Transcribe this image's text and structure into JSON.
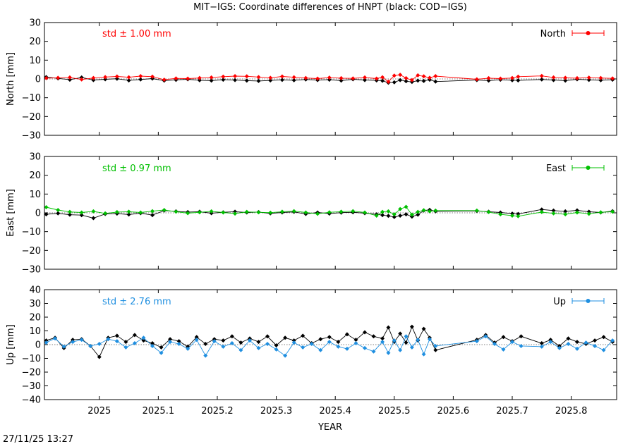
{
  "title": "MIT−IGS: Coordinate differences of HNPT (black: COD−IGS)",
  "xlabel": "YEAR",
  "timestamp": "27/11/25 13:27",
  "chart_data": [
    {
      "type": "scatter",
      "component": "north",
      "ylabel": "North [mm]",
      "std_label": "std ± 1.00 mm",
      "legend_label": "North",
      "legend_position": "top-right",
      "xlim": [
        2024.907,
        2025.877
      ],
      "ylim": [
        -30,
        30
      ],
      "x_ticks": [
        2025,
        2025.1,
        2025.2,
        2025.3,
        2025.4,
        2025.5,
        2025.6,
        2025.7,
        2025.8
      ],
      "x_tick_labels": [
        "2025",
        "2025.1",
        "2025.2",
        "2025.3",
        "2025.4",
        "2025.5",
        "2025.6",
        "2025.7",
        "2025.8"
      ],
      "y_ticks": [
        -30,
        -20,
        -10,
        0,
        10,
        20,
        30
      ],
      "y_tick_labels": [
        "−30",
        "−20",
        "−10",
        "0",
        "10",
        "20",
        "30"
      ],
      "grid": false,
      "colors": {
        "mit": "#ff0000",
        "cod": "#000000"
      },
      "series_mit": {
        "x": [
          2024.91,
          2024.93,
          2024.95,
          2024.97,
          2024.99,
          2025.01,
          2025.03,
          2025.05,
          2025.07,
          2025.09,
          2025.11,
          2025.13,
          2025.15,
          2025.17,
          2025.19,
          2025.21,
          2025.23,
          2025.25,
          2025.27,
          2025.29,
          2025.31,
          2025.33,
          2025.35,
          2025.37,
          2025.39,
          2025.41,
          2025.43,
          2025.45,
          2025.47,
          2025.48,
          2025.49,
          2025.5,
          2025.51,
          2025.52,
          2025.53,
          2025.54,
          2025.55,
          2025.56,
          2025.57,
          2025.64,
          2025.66,
          2025.68,
          2025.7,
          2025.71,
          2025.75,
          2025.77,
          2025.79,
          2025.81,
          2025.83,
          2025.85,
          2025.87
        ],
        "y": [
          0.4,
          0.6,
          0.8,
          -0.3,
          0.5,
          1.0,
          1.3,
          0.9,
          1.5,
          1.2,
          -0.4,
          0.3,
          0.2,
          0.5,
          0.8,
          1.2,
          1.5,
          1.4,
          1.0,
          0.6,
          1.3,
          0.9,
          0.5,
          0.2,
          0.7,
          0.4,
          0.3,
          0.8,
          0.2,
          0.9,
          -1.5,
          1.8,
          2.2,
          0.4,
          -0.6,
          1.9,
          1.4,
          0.6,
          1.5,
          -0.2,
          0.4,
          0.2,
          0.5,
          1.2,
          1.6,
          0.8,
          0.6,
          0.4,
          0.7,
          0.5,
          0.3
        ]
      },
      "series_cod": {
        "x": [
          2024.91,
          2024.93,
          2024.95,
          2024.97,
          2024.99,
          2025.01,
          2025.03,
          2025.05,
          2025.07,
          2025.09,
          2025.11,
          2025.13,
          2025.15,
          2025.17,
          2025.19,
          2025.21,
          2025.23,
          2025.25,
          2025.27,
          2025.29,
          2025.31,
          2025.33,
          2025.35,
          2025.37,
          2025.39,
          2025.41,
          2025.43,
          2025.45,
          2025.47,
          2025.48,
          2025.49,
          2025.5,
          2025.51,
          2025.52,
          2025.53,
          2025.54,
          2025.55,
          2025.56,
          2025.57,
          2025.64,
          2025.66,
          2025.68,
          2025.7,
          2025.71,
          2025.75,
          2025.77,
          2025.79,
          2025.81,
          2025.83,
          2025.85,
          2025.87
        ],
        "y": [
          1.0,
          0.3,
          -0.4,
          0.8,
          -0.6,
          -0.2,
          0.1,
          -0.8,
          -0.3,
          0.2,
          -0.9,
          -0.5,
          -0.2,
          -0.7,
          -0.9,
          -0.4,
          -0.6,
          -0.9,
          -1.1,
          -0.8,
          -0.5,
          -0.7,
          -0.3,
          -0.6,
          -0.4,
          -0.9,
          -0.2,
          -0.6,
          -0.8,
          -1.0,
          -2.0,
          -1.8,
          -0.6,
          -1.2,
          -1.6,
          -0.9,
          -1.1,
          -0.4,
          -1.4,
          -0.6,
          -0.9,
          -0.4,
          -0.7,
          -0.8,
          -0.3,
          -0.6,
          -0.9,
          -0.2,
          -0.5,
          -0.7,
          -0.4
        ]
      }
    },
    {
      "type": "scatter",
      "component": "east",
      "ylabel": "East [mm]",
      "std_label": "std ± 0.97 mm",
      "legend_label": "East",
      "legend_position": "top-right",
      "xlim": [
        2024.907,
        2025.877
      ],
      "ylim": [
        -30,
        30
      ],
      "x_ticks": [
        2025,
        2025.1,
        2025.2,
        2025.3,
        2025.4,
        2025.5,
        2025.6,
        2025.7,
        2025.8
      ],
      "x_tick_labels": [
        "2025",
        "2025.1",
        "2025.2",
        "2025.3",
        "2025.4",
        "2025.5",
        "2025.6",
        "2025.7",
        "2025.8"
      ],
      "y_ticks": [
        -30,
        -20,
        -10,
        0,
        10,
        20,
        30
      ],
      "y_tick_labels": [
        "−30",
        "−20",
        "−10",
        "0",
        "10",
        "20",
        "30"
      ],
      "grid": false,
      "colors": {
        "mit": "#00c000",
        "cod": "#000000"
      },
      "series_mit": {
        "x": [
          2024.91,
          2024.93,
          2024.95,
          2024.97,
          2024.99,
          2025.01,
          2025.03,
          2025.05,
          2025.07,
          2025.09,
          2025.11,
          2025.13,
          2025.15,
          2025.17,
          2025.19,
          2025.21,
          2025.23,
          2025.25,
          2025.27,
          2025.29,
          2025.31,
          2025.33,
          2025.35,
          2025.37,
          2025.39,
          2025.41,
          2025.43,
          2025.45,
          2025.47,
          2025.48,
          2025.49,
          2025.5,
          2025.51,
          2025.52,
          2025.53,
          2025.54,
          2025.55,
          2025.56,
          2025.57,
          2025.64,
          2025.66,
          2025.68,
          2025.7,
          2025.71,
          2025.75,
          2025.77,
          2025.79,
          2025.81,
          2025.83,
          2025.85,
          2025.87
        ],
        "y": [
          3.0,
          1.5,
          0.5,
          0.2,
          0.8,
          -0.3,
          0.4,
          0.6,
          0.2,
          0.9,
          1.5,
          0.6,
          -0.2,
          0.3,
          0.8,
          0.2,
          -0.4,
          0.5,
          0.3,
          0.1,
          0.6,
          0.9,
          0.2,
          -0.5,
          0.3,
          0.6,
          0.9,
          0.2,
          -1.5,
          0.5,
          0.8,
          -0.8,
          2.0,
          3.2,
          -1.0,
          0.5,
          1.4,
          0.8,
          1.2,
          1.2,
          0.4,
          -0.8,
          -1.5,
          -1.8,
          0.4,
          -0.3,
          -0.8,
          0.2,
          -0.5,
          0.3,
          0.6
        ]
      },
      "series_cod": {
        "x": [
          2024.91,
          2024.93,
          2024.95,
          2024.97,
          2024.99,
          2025.01,
          2025.03,
          2025.05,
          2025.07,
          2025.09,
          2025.11,
          2025.13,
          2025.15,
          2025.17,
          2025.19,
          2025.21,
          2025.23,
          2025.25,
          2025.27,
          2025.29,
          2025.31,
          2025.33,
          2025.35,
          2025.37,
          2025.39,
          2025.41,
          2025.43,
          2025.45,
          2025.47,
          2025.48,
          2025.49,
          2025.5,
          2025.51,
          2025.52,
          2025.53,
          2025.54,
          2025.55,
          2025.56,
          2025.57,
          2025.64,
          2025.66,
          2025.68,
          2025.7,
          2025.71,
          2025.75,
          2025.77,
          2025.79,
          2025.81,
          2025.83,
          2025.85,
          2025.87
        ],
        "y": [
          -0.8,
          -0.3,
          -1.0,
          -1.2,
          -2.8,
          -0.6,
          -0.4,
          -0.9,
          -0.2,
          -1.2,
          1.2,
          0.8,
          0.4,
          0.6,
          -0.2,
          0.3,
          0.6,
          0.2,
          0.4,
          -0.3,
          0.2,
          0.5,
          -0.6,
          0.2,
          -0.4,
          0.1,
          0.3,
          -0.2,
          -0.8,
          -1.2,
          -1.6,
          -2.2,
          -1.5,
          -0.8,
          -2.0,
          -1.0,
          1.2,
          1.6,
          0.8,
          1.0,
          0.6,
          0.2,
          -0.4,
          -0.6,
          1.8,
          1.2,
          0.8,
          1.3,
          0.6,
          0.2,
          0.9
        ]
      }
    },
    {
      "type": "scatter",
      "component": "up",
      "ylabel": "Up [mm]",
      "std_label": "std ± 2.76 mm",
      "legend_label": "Up",
      "legend_position": "top-right",
      "xlim": [
        2024.907,
        2025.877
      ],
      "ylim": [
        -40,
        40
      ],
      "x_ticks": [
        2025,
        2025.1,
        2025.2,
        2025.3,
        2025.4,
        2025.5,
        2025.6,
        2025.7,
        2025.8
      ],
      "x_tick_labels": [
        "2025",
        "2025.1",
        "2025.2",
        "2025.3",
        "2025.4",
        "2025.5",
        "2025.6",
        "2025.7",
        "2025.8"
      ],
      "y_ticks": [
        -40,
        -30,
        -20,
        -10,
        0,
        10,
        20,
        30,
        40
      ],
      "y_tick_labels": [
        "−40",
        "−30",
        "−20",
        "−10",
        "0",
        "10",
        "20",
        "30",
        "40"
      ],
      "grid": false,
      "colors": {
        "mit": "#1f8fe0",
        "cod": "#000000"
      },
      "series_mit": {
        "x": [
          2024.91,
          2024.925,
          2024.94,
          2024.955,
          2024.97,
          2024.985,
          2025.0,
          2025.015,
          2025.03,
          2025.045,
          2025.06,
          2025.075,
          2025.09,
          2025.105,
          2025.12,
          2025.135,
          2025.15,
          2025.165,
          2025.18,
          2025.195,
          2025.21,
          2025.225,
          2025.24,
          2025.255,
          2025.27,
          2025.285,
          2025.3,
          2025.315,
          2025.33,
          2025.345,
          2025.36,
          2025.375,
          2025.39,
          2025.405,
          2025.42,
          2025.435,
          2025.45,
          2025.465,
          2025.48,
          2025.49,
          2025.5,
          2025.51,
          2025.52,
          2025.53,
          2025.54,
          2025.55,
          2025.56,
          2025.57,
          2025.64,
          2025.655,
          2025.67,
          2025.685,
          2025.7,
          2025.715,
          2025.75,
          2025.765,
          2025.78,
          2025.795,
          2025.81,
          2025.825,
          2025.84,
          2025.855,
          2025.87
        ],
        "y": [
          1.5,
          4.5,
          -1.5,
          2.0,
          3.5,
          -1.0,
          0.5,
          4.0,
          2.5,
          -2.0,
          1.0,
          5.0,
          -1.0,
          -6.0,
          2.0,
          0.5,
          -3.0,
          3.5,
          -8.0,
          2.5,
          -1.5,
          1.0,
          -4.0,
          3.0,
          -2.5,
          0.5,
          -3.5,
          -8.0,
          1.5,
          -2.0,
          0.5,
          -4.0,
          2.0,
          -1.5,
          -3.0,
          1.0,
          -2.5,
          -5.0,
          2.0,
          -6.0,
          3.0,
          -4.0,
          6.0,
          -2.0,
          3.5,
          -7.0,
          4.0,
          -1.0,
          2.5,
          6.0,
          0.5,
          -3.5,
          2.0,
          -1.0,
          -1.5,
          2.0,
          -2.5,
          0.5,
          -3.0,
          1.5,
          -1.0,
          -4.0,
          3.0
        ]
      },
      "series_cod": {
        "x": [
          2024.91,
          2024.925,
          2024.94,
          2024.955,
          2024.97,
          2024.985,
          2025.0,
          2025.015,
          2025.03,
          2025.045,
          2025.06,
          2025.075,
          2025.09,
          2025.105,
          2025.12,
          2025.135,
          2025.15,
          2025.165,
          2025.18,
          2025.195,
          2025.21,
          2025.225,
          2025.24,
          2025.255,
          2025.27,
          2025.285,
          2025.3,
          2025.315,
          2025.33,
          2025.345,
          2025.36,
          2025.375,
          2025.39,
          2025.405,
          2025.42,
          2025.435,
          2025.45,
          2025.465,
          2025.48,
          2025.49,
          2025.5,
          2025.51,
          2025.52,
          2025.53,
          2025.54,
          2025.55,
          2025.56,
          2025.57,
          2025.64,
          2025.655,
          2025.67,
          2025.685,
          2025.7,
          2025.715,
          2025.75,
          2025.765,
          2025.78,
          2025.795,
          2025.81,
          2025.825,
          2025.84,
          2025.855,
          2025.87
        ],
        "y": [
          3.0,
          5.0,
          -2.5,
          3.5,
          4.0,
          -1.0,
          -9.0,
          5.0,
          6.5,
          2.0,
          7.0,
          3.0,
          1.0,
          -2.0,
          4.0,
          2.5,
          -1.5,
          5.5,
          0.5,
          4.0,
          3.0,
          6.0,
          1.5,
          4.5,
          2.0,
          6.0,
          -0.5,
          5.0,
          3.0,
          6.5,
          1.0,
          4.0,
          5.5,
          2.0,
          7.5,
          3.5,
          9.0,
          6.0,
          4.5,
          12.5,
          2.0,
          8.0,
          1.5,
          13.0,
          3.0,
          11.5,
          5.0,
          -4.0,
          3.5,
          7.0,
          1.5,
          5.5,
          2.5,
          6.0,
          1.0,
          3.5,
          -1.0,
          4.5,
          2.0,
          0.5,
          3.0,
          5.5,
          2.0
        ]
      }
    }
  ]
}
